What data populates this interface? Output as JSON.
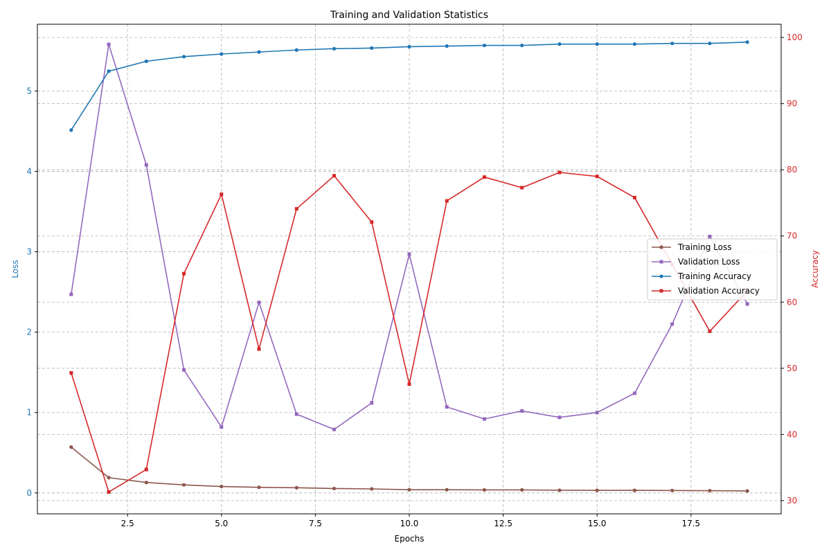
{
  "chart_data": {
    "type": "line",
    "title": "Training and Validation Statistics",
    "xlabel": "Epochs",
    "ylabel_left": "Loss",
    "ylabel_right": "Accuracy",
    "xlim": [
      0.1,
      19.9
    ],
    "ylim_left": [
      -0.26,
      5.83
    ],
    "ylim_right": [
      28.0,
      102.0
    ],
    "x_ticks": [
      2.5,
      5.0,
      7.5,
      10.0,
      12.5,
      15.0,
      17.5
    ],
    "x_tick_labels": [
      "2.5",
      "5.0",
      "7.5",
      "10.0",
      "12.5",
      "15.0",
      "17.5"
    ],
    "y_left_ticks": [
      0,
      1,
      2,
      3,
      4,
      5
    ],
    "y_left_tick_labels": [
      "0",
      "1",
      "2",
      "3",
      "4",
      "5"
    ],
    "y_right_ticks": [
      30,
      40,
      50,
      60,
      70,
      80,
      90,
      100
    ],
    "y_right_tick_labels": [
      "30",
      "40",
      "50",
      "60",
      "70",
      "80",
      "90",
      "100"
    ],
    "grid": true,
    "legend_position": "center-right",
    "colors": {
      "left_axis": "#1f77b4",
      "right_axis": "#d62728"
    },
    "x": [
      1,
      2,
      3,
      4,
      5,
      6,
      7,
      8,
      9,
      10,
      11,
      12,
      13,
      14,
      15,
      16,
      17,
      18,
      19
    ],
    "series": [
      {
        "name": "Training Loss",
        "axis": "left",
        "color": "#8c564b",
        "marker": "circle",
        "values": [
          0.57,
          0.19,
          0.13,
          0.1,
          0.08,
          0.07,
          0.065,
          0.055,
          0.05,
          0.04,
          0.04,
          0.038,
          0.038,
          0.033,
          0.032,
          0.032,
          0.03,
          0.028,
          0.025
        ]
      },
      {
        "name": "Validation Loss",
        "axis": "left",
        "color": "#9467bd",
        "marker": "square",
        "values": [
          2.47,
          5.58,
          4.08,
          1.53,
          0.82,
          2.37,
          0.98,
          0.79,
          1.12,
          2.97,
          1.07,
          0.92,
          1.02,
          0.94,
          1.0,
          1.24,
          2.1,
          3.19,
          2.35
        ]
      },
      {
        "name": "Training Accuracy",
        "axis": "right",
        "color": "#1f77b4",
        "marker": "circle",
        "values": [
          86.0,
          94.9,
          96.4,
          97.1,
          97.5,
          97.8,
          98.1,
          98.3,
          98.4,
          98.6,
          98.7,
          98.8,
          98.8,
          99.0,
          99.0,
          99.0,
          99.1,
          99.1,
          99.3
        ]
      },
      {
        "name": "Validation Accuracy",
        "axis": "right",
        "color": "#d62728",
        "marker": "square",
        "values": [
          49.3,
          31.3,
          34.7,
          64.3,
          76.3,
          52.9,
          74.1,
          79.1,
          72.1,
          47.6,
          75.3,
          78.9,
          77.3,
          79.6,
          79.0,
          75.8,
          65.7,
          55.6,
          61.7
        ]
      }
    ]
  }
}
